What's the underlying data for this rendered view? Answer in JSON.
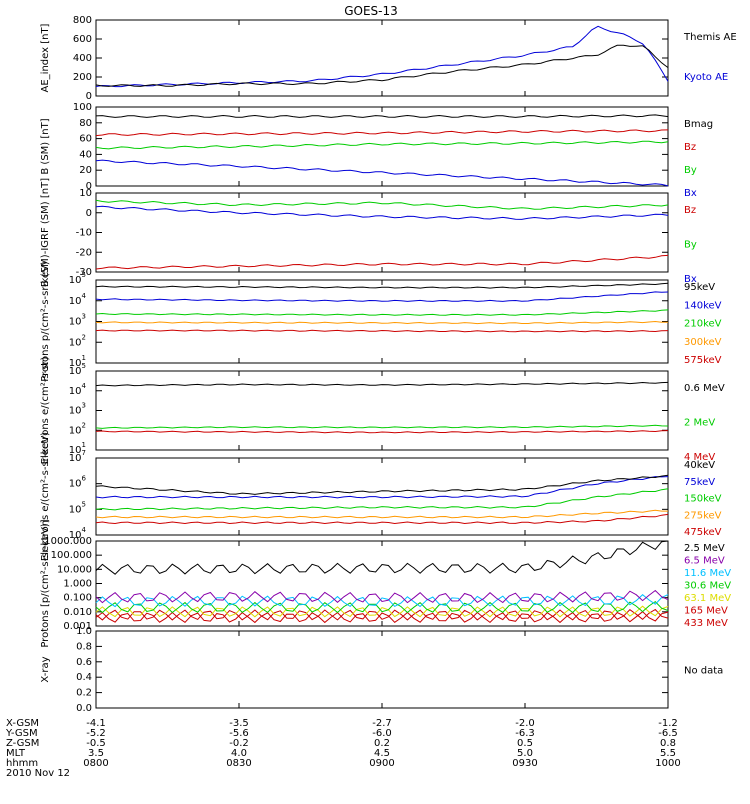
{
  "title": "GOES-13",
  "footer": {
    "rows": [
      {
        "label": "X-GSM",
        "values": [
          "-4.1",
          "-3.5",
          "-2.7",
          "-2.0",
          "-1.2"
        ]
      },
      {
        "label": "Y-GSM",
        "values": [
          "-5.2",
          "-5.6",
          "-6.0",
          "-6.3",
          "-6.5"
        ]
      },
      {
        "label": "Z-GSM",
        "values": [
          "-0.5",
          "-0.2",
          "0.2",
          "0.5",
          "0.8"
        ]
      },
      {
        "label": "MLT",
        "values": [
          "3.5",
          "4.0",
          "4.5",
          "5.0",
          "5.5"
        ]
      },
      {
        "label": "hhmm",
        "values": [
          "0800",
          "0830",
          "0900",
          "0930",
          "1000"
        ]
      }
    ],
    "date": "2010 Nov 12"
  },
  "colors": {
    "black": "#000000",
    "blue": "#0000d8",
    "green": "#00cc00",
    "red": "#cc0000",
    "orange": "#ff9900",
    "yellow": "#dddd00",
    "cyan": "#00c0ff",
    "purple": "#8800aa"
  },
  "chart_data": [
    {
      "id": "ae",
      "type": "line",
      "ylabel": "AE_index [nT]",
      "ylim": [
        0,
        800
      ],
      "yticks": [
        "0",
        "200",
        "400",
        "600",
        "800"
      ],
      "log": false,
      "x": [
        "0800",
        "0815",
        "0830",
        "0845",
        "0900",
        "0915",
        "0930",
        "0940",
        "0945",
        "0950",
        "0955",
        "1000"
      ],
      "series": [
        {
          "name": "Kyoto AE",
          "color": "blue",
          "values": [
            100,
            120,
            140,
            160,
            230,
            330,
            430,
            520,
            730,
            660,
            550,
            160
          ]
        },
        {
          "name": "Themis AE",
          "color": "black",
          "values": [
            110,
            110,
            130,
            130,
            170,
            260,
            330,
            400,
            430,
            540,
            520,
            300
          ]
        }
      ]
    },
    {
      "id": "bsm",
      "type": "line",
      "ylabel": "B (SM) [nT]",
      "ylim": [
        0,
        100
      ],
      "yticks": [
        "0",
        "20",
        "40",
        "60",
        "80",
        "100"
      ],
      "log": false,
      "x": [
        "0800",
        "0830",
        "0900",
        "0930",
        "1000"
      ],
      "series": [
        {
          "name": "Bx",
          "color": "blue",
          "values": [
            32,
            25,
            17,
            9,
            1
          ]
        },
        {
          "name": "By",
          "color": "green",
          "values": [
            48,
            50,
            53,
            54,
            56
          ]
        },
        {
          "name": "Bz",
          "color": "red",
          "values": [
            65,
            66,
            67,
            69,
            70
          ]
        },
        {
          "name": "Bmag",
          "color": "black",
          "values": [
            88,
            88,
            88,
            88,
            89
          ]
        }
      ]
    },
    {
      "id": "bigrf",
      "type": "line",
      "ylabel": "B (SM)-IGRF (SM) [nT]",
      "ylim": [
        -30,
        10
      ],
      "yticks": [
        "-30",
        "-20",
        "-10",
        "0",
        "10"
      ],
      "log": false,
      "x": [
        "0800",
        "0830",
        "0900",
        "0930",
        "1000"
      ],
      "series": [
        {
          "name": "Bx",
          "color": "blue",
          "values": [
            3,
            0,
            -2,
            -3,
            -1
          ]
        },
        {
          "name": "By",
          "color": "green",
          "values": [
            6,
            4,
            5,
            2,
            4
          ]
        },
        {
          "name": "Bz",
          "color": "red",
          "values": [
            -28,
            -27,
            -26,
            -26,
            -22
          ]
        }
      ]
    },
    {
      "id": "protons",
      "type": "line",
      "ylabel": "Protons p/(cm²-s-sr-keV)",
      "ylim": [
        1,
        100000
      ],
      "yticks": [
        "10^1",
        "10^2",
        "10^3",
        "10^4",
        "10^5"
      ],
      "log": true,
      "x": [
        "0800",
        "0830",
        "0900",
        "0930",
        "1000"
      ],
      "series": [
        {
          "name": "575keV",
          "color": "red",
          "values": [
            90,
            90,
            85,
            80,
            85
          ]
        },
        {
          "name": "300keV",
          "color": "orange",
          "values": [
            280,
            270,
            260,
            250,
            300
          ]
        },
        {
          "name": "210keV",
          "color": "green",
          "values": [
            900,
            850,
            800,
            800,
            1500
          ]
        },
        {
          "name": "140keV",
          "color": "blue",
          "values": [
            7000,
            6000,
            5500,
            5500,
            20000
          ]
        },
        {
          "name": "95keV",
          "color": "black",
          "values": [
            40000,
            38000,
            35000,
            35000,
            60000
          ]
        }
      ]
    },
    {
      "id": "electrons1",
      "type": "line",
      "ylabel": "Electrons e/(cm²-s-sr)",
      "ylim": [
        1,
        100000
      ],
      "yticks": [
        "10^1",
        "10^2",
        "10^3",
        "10^4",
        "10^5"
      ],
      "log": true,
      "x": [
        "0800",
        "0830",
        "0900",
        "0930",
        "1000"
      ],
      "series": [
        {
          "name": "4 MeV",
          "color": "red",
          "values": [
            15,
            14,
            13,
            14,
            16
          ]
        },
        {
          "name": "2 MeV",
          "color": "green",
          "values": [
            25,
            28,
            27,
            28,
            35
          ]
        },
        {
          "name": "0.6 MeV",
          "color": "black",
          "values": [
            12000,
            14000,
            13000,
            15000,
            18000
          ]
        }
      ]
    },
    {
      "id": "electrons2",
      "type": "line",
      "ylabel": "Electrons e/(cm²-s-sr-keV)",
      "ylim": [
        10000,
        10000000
      ],
      "yticks": [
        "10^4",
        "10^5",
        "10^6",
        "10^7"
      ],
      "log": true,
      "x": [
        "0800",
        "0830",
        "0900",
        "0930",
        "0945",
        "1000"
      ],
      "series": [
        {
          "name": "475keV",
          "color": "red",
          "values": [
            30000,
            30000,
            30000,
            30000,
            35000,
            60000
          ]
        },
        {
          "name": "275keV",
          "color": "orange",
          "values": [
            50000,
            50000,
            50000,
            50000,
            70000,
            90000
          ]
        },
        {
          "name": "150keV",
          "color": "green",
          "values": [
            100000,
            110000,
            120000,
            120000,
            300000,
            600000
          ]
        },
        {
          "name": "75keV",
          "color": "blue",
          "values": [
            300000,
            300000,
            300000,
            320000,
            1000000,
            2000000
          ]
        },
        {
          "name": "40keV",
          "color": "black",
          "values": [
            800000,
            400000,
            500000,
            600000,
            1300000,
            2000000
          ]
        }
      ]
    },
    {
      "id": "hiprotons",
      "type": "line",
      "ylabel": "Protons [p/(cm²-s-sr-keV)]",
      "ylim": [
        0.001,
        1000
      ],
      "yticks": [
        "0.001",
        "0.010",
        "0.100",
        "1.000",
        "10.000",
        "100.000",
        "1000.000"
      ],
      "log": true,
      "x": [
        "0800",
        "0830",
        "0900",
        "0930",
        "0945",
        "1000"
      ],
      "series": [
        {
          "name": "433 MeV",
          "color": "red",
          "values": [
            0.004,
            0.004,
            0.004,
            0.004,
            0.004,
            0.005
          ]
        },
        {
          "name": "165 MeV",
          "color": "red",
          "values": [
            0.006,
            0.006,
            0.006,
            0.006,
            0.006,
            0.007
          ]
        },
        {
          "name": "63.1 MeV",
          "color": "yellow",
          "values": [
            0.01,
            0.01,
            0.01,
            0.01,
            0.01,
            0.012
          ]
        },
        {
          "name": "30.6 MeV",
          "color": "green",
          "values": [
            0.02,
            0.02,
            0.02,
            0.02,
            0.02,
            0.025
          ]
        },
        {
          "name": "11.6 MeV",
          "color": "cyan",
          "values": [
            0.05,
            0.06,
            0.05,
            0.06,
            0.06,
            0.08
          ]
        },
        {
          "name": "6.5 MeV",
          "color": "purple",
          "values": [
            0.1,
            0.12,
            0.1,
            0.1,
            0.12,
            0.15
          ]
        },
        {
          "name": "2.5 MeV",
          "color": "black",
          "values": [
            10,
            11,
            12,
            12,
            70,
            900
          ]
        }
      ]
    },
    {
      "id": "xray",
      "type": "line",
      "ylabel": "X-ray",
      "ylim": [
        0,
        1
      ],
      "yticks": [
        "0.0",
        "0.2",
        "0.4",
        "0.6",
        "0.8",
        "1.0"
      ],
      "log": false,
      "x": [],
      "series": [],
      "note": "No data"
    }
  ]
}
